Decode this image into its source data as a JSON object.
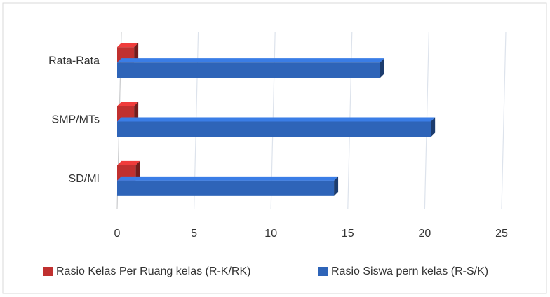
{
  "chart_data": {
    "type": "bar",
    "orientation": "horizontal",
    "categories": [
      "SD/MI",
      "SMP/MTs",
      "Rata-Rata"
    ],
    "series": [
      {
        "name": "Rasio Kelas Per Ruang kelas (R-K/RK)",
        "color": "#c0302f",
        "values": [
          1.2,
          1.1,
          1.1
        ]
      },
      {
        "name": "Rasio Siswa pern kelas (R-S/K)",
        "color": "#2e64b8",
        "values": [
          14.1,
          20.4,
          17.1
        ]
      }
    ],
    "xlim": [
      0,
      25
    ],
    "xticks": [
      0,
      5,
      10,
      15,
      20,
      25
    ],
    "grid": true,
    "legend": "bottom"
  }
}
